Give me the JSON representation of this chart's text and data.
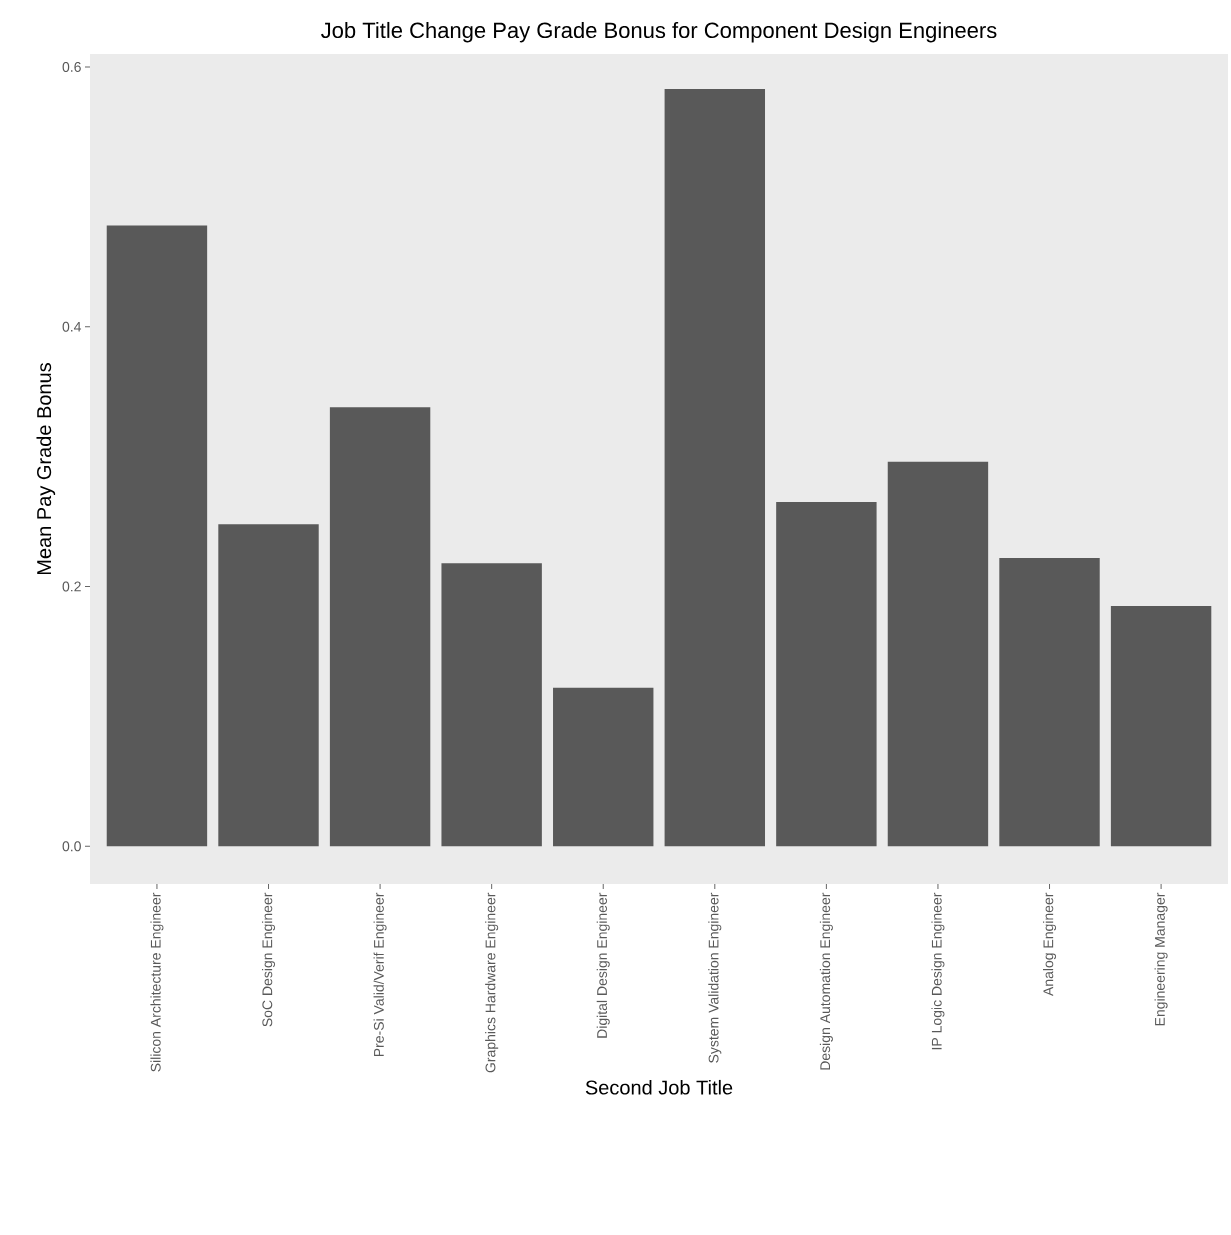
{
  "chart_data": {
    "type": "bar",
    "title": "Job Title Change Pay Grade Bonus for Component Design Engineers",
    "xlabel": "Second Job Title",
    "ylabel": "Mean Pay Grade Bonus",
    "categories": [
      "Silicon Architecture Engineer",
      "SoC Design Engineer",
      "Pre-Si Valid/Verif Engineer",
      "Graphics Hardware Engineer",
      "Digital Design Engineer",
      "System Validation Engineer",
      "Design Automation Engineer",
      "IP Logic Design Engineer",
      "Analog Engineer",
      "Engineering Manager"
    ],
    "values": [
      0.478,
      0.248,
      0.338,
      0.218,
      0.122,
      0.583,
      0.265,
      0.296,
      0.222,
      0.185
    ],
    "color": "#595959",
    "ylim": [
      -0.029,
      0.61
    ],
    "yticks": [
      {
        "value": 0,
        "label": "0.0"
      },
      {
        "value": 0.2,
        "label": "0.2"
      },
      {
        "value": 0.4,
        "label": "0.4"
      },
      {
        "value": 0.6,
        "label": "0.6"
      }
    ]
  }
}
